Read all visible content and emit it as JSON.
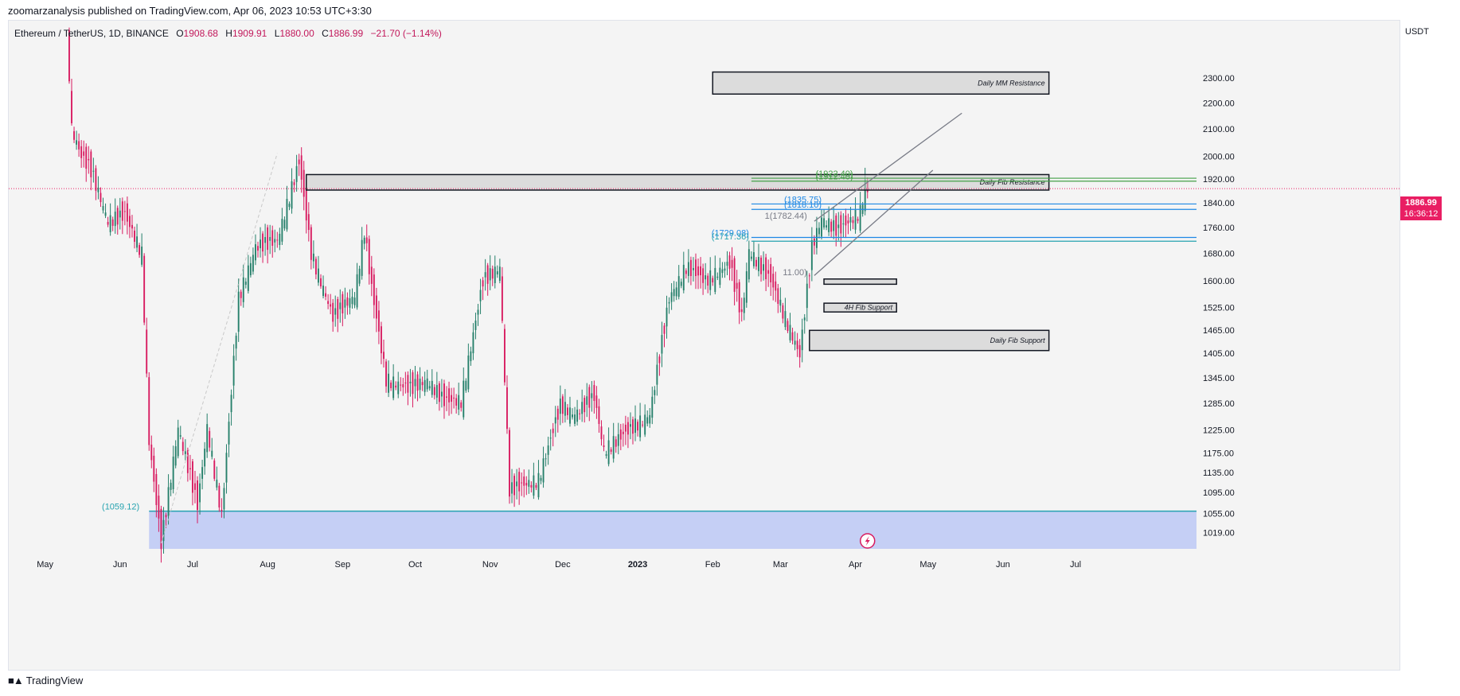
{
  "publisher_line": "zoomarzanalysis published on TradingView.com, Apr 06, 2023 10:53 UTC+3:30",
  "symbol": {
    "name": "Ethereum / TetherUS, 1D, BINANCE",
    "open_label": "O",
    "open": "1908.68",
    "high_label": "H",
    "high": "1909.91",
    "low_label": "L",
    "low": "1880.00",
    "close_label": "C",
    "close": "1886.99",
    "change": "−21.70 (−1.14%)"
  },
  "currency": "USDT",
  "last_price": "1886.99",
  "countdown": "16:36:12",
  "footer_brand": "TradingView",
  "colors": {
    "up": "#26806b",
    "down": "#d81b60",
    "background": "#f4f4f4",
    "last_price": "#e91e63"
  },
  "chart_data": {
    "type": "candlestick",
    "title": "",
    "x": {
      "labels": [
        "May",
        "Jun",
        "Jul",
        "Aug",
        "Sep",
        "Oct",
        "Nov",
        "Dec",
        "2023",
        "Feb",
        "Mar",
        "Apr",
        "May",
        "Jun",
        "Jul"
      ],
      "label_dates": [
        "2022-05-01",
        "2022-06-01",
        "2022-07-01",
        "2022-08-01",
        "2022-09-01",
        "2022-10-01",
        "2022-11-01",
        "2022-12-01",
        "2023-01-01",
        "2023-02-01",
        "2023-03-01",
        "2023-04-01",
        "2023-05-01",
        "2023-06-01",
        "2023-07-01"
      ],
      "range": [
        "2022-04-16",
        "2023-08-20"
      ]
    },
    "y": {
      "scale": "log",
      "range": [
        990,
        2520
      ],
      "ticks": [
        "2300.00",
        "2200.00",
        "2100.00",
        "2000.00",
        "1920.00",
        "1840.00",
        "1760.00",
        "1680.00",
        "1600.00",
        "1525.00",
        "1465.00",
        "1405.00",
        "1345.00",
        "1285.00",
        "1225.00",
        "1175.00",
        "1135.00",
        "1095.00",
        "1055.00",
        "1019.00"
      ]
    },
    "path_points": [
      [
        "2022-05-10",
        2550
      ],
      [
        "2022-05-12",
        2100
      ],
      [
        "2022-05-16",
        2000
      ],
      [
        "2022-05-20",
        1950
      ],
      [
        "2022-05-27",
        1780
      ],
      [
        "2022-06-03",
        1800
      ],
      [
        "2022-06-10",
        1680
      ],
      [
        "2022-06-13",
        1200
      ],
      [
        "2022-06-18",
        1000
      ],
      [
        "2022-06-25",
        1230
      ],
      [
        "2022-07-03",
        1070
      ],
      [
        "2022-07-07",
        1230
      ],
      [
        "2022-07-13",
        1050
      ],
      [
        "2022-07-20",
        1550
      ],
      [
        "2022-07-27",
        1700
      ],
      [
        "2022-08-05",
        1720
      ],
      [
        "2022-08-14",
        1980
      ],
      [
        "2022-08-19",
        1680
      ],
      [
        "2022-08-28",
        1500
      ],
      [
        "2022-09-06",
        1560
      ],
      [
        "2022-09-10",
        1750
      ],
      [
        "2022-09-13",
        1580
      ],
      [
        "2022-09-19",
        1340
      ],
      [
        "2022-09-29",
        1320
      ],
      [
        "2022-10-06",
        1340
      ],
      [
        "2022-10-13",
        1290
      ],
      [
        "2022-10-20",
        1290
      ],
      [
        "2022-10-29",
        1600
      ],
      [
        "2022-11-05",
        1640
      ],
      [
        "2022-11-09",
        1100
      ],
      [
        "2022-11-21",
        1120
      ],
      [
        "2022-11-30",
        1280
      ],
      [
        "2022-12-06",
        1260
      ],
      [
        "2022-12-14",
        1300
      ],
      [
        "2022-12-18",
        1180
      ],
      [
        "2022-12-25",
        1210
      ],
      [
        "2023-01-06",
        1260
      ],
      [
        "2023-01-14",
        1550
      ],
      [
        "2023-01-21",
        1640
      ],
      [
        "2023-01-29",
        1600
      ],
      [
        "2023-02-08",
        1650
      ],
      [
        "2023-02-13",
        1500
      ],
      [
        "2023-02-16",
        1690
      ],
      [
        "2023-02-25",
        1600
      ],
      [
        "2023-03-09",
        1400
      ],
      [
        "2023-03-14",
        1700
      ],
      [
        "2023-03-18",
        1790
      ],
      [
        "2023-03-25",
        1750
      ],
      [
        "2023-04-03",
        1810
      ],
      [
        "2023-04-05",
        1900
      ],
      [
        "2023-04-06",
        1886.99
      ]
    ],
    "zones": [
      {
        "label": "Daily MM Resistance",
        "from": "2023-02-01",
        "to": "2023-06-20",
        "low": 2235,
        "high": 2325
      },
      {
        "label": "Daily Fib Resistance",
        "from": "2022-08-17",
        "to": "2023-06-20",
        "low": 1882,
        "high": 1935
      },
      {
        "label": "",
        "from": "2023-03-19",
        "to": "2023-04-18",
        "low": 1590,
        "high": 1605
      },
      {
        "label": "4H Fib Support",
        "from": "2023-03-19",
        "to": "2023-04-18",
        "low": 1513,
        "high": 1537
      },
      {
        "label": "Daily Fib Support",
        "from": "2023-03-13",
        "to": "2023-06-20",
        "low": 1412,
        "high": 1464
      }
    ],
    "fib_labels": [
      {
        "text": "(1922.40)",
        "price": 1922.4
      },
      {
        "text": "(1912.40)",
        "price": 1912.4
      },
      {
        "text": "(1835.75)",
        "price": 1835.75
      },
      {
        "text": "(1818.10)",
        "price": 1818.1
      },
      {
        "text": "1(1782.44)",
        "price": 1782.44
      },
      {
        "text": "(1729.08)",
        "price": 1729.08
      },
      {
        "text": "(1717.36)",
        "price": 1717.36
      },
      {
        "text": "11.00)",
        "price": 1611
      },
      {
        "text": "(1059.12)",
        "price": 1059.12
      }
    ],
    "support_zone": {
      "from": "2022-06-13",
      "to": "2023-08-20",
      "low": 990,
      "high": 1059.12
    },
    "last_price": 1886.99,
    "grid": false,
    "legend": "none"
  }
}
